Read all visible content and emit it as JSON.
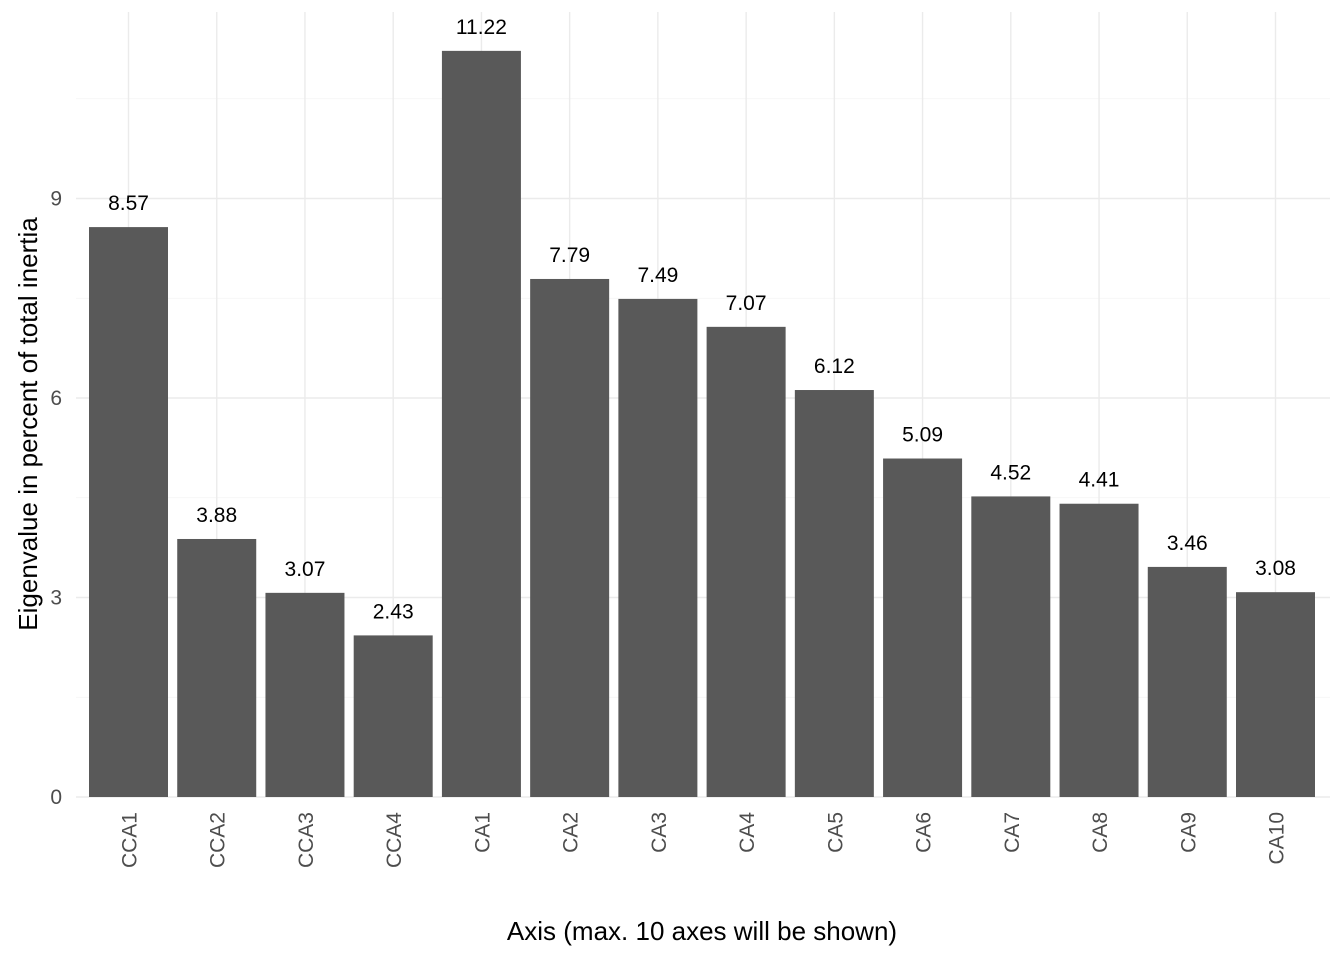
{
  "chart_data": {
    "type": "bar",
    "title": "",
    "xlabel": "Axis (max. 10 axes will be shown)",
    "ylabel": "Eigenvalue in percent of total inertia",
    "categories": [
      "CCA1",
      "CCA2",
      "CCA3",
      "CCA4",
      "CA1",
      "CA2",
      "CA3",
      "CA4",
      "CA5",
      "CA6",
      "CA7",
      "CA8",
      "CA9",
      "CA10"
    ],
    "values": [
      8.57,
      3.88,
      3.07,
      2.43,
      11.22,
      7.79,
      7.49,
      7.07,
      6.12,
      5.09,
      4.52,
      4.41,
      3.46,
      3.08
    ],
    "data_labels": [
      "8.57",
      "3.88",
      "3.07",
      "2.43",
      "11.22",
      "7.79",
      "7.49",
      "7.07",
      "6.12",
      "5.09",
      "4.52",
      "4.41",
      "3.46",
      "3.08"
    ],
    "y_ticks": [
      0,
      3,
      6,
      9
    ],
    "y_tick_labels": [
      "0",
      "3",
      "6",
      "9"
    ],
    "ylim": [
      0,
      11.8
    ],
    "grid": true,
    "legend": "none",
    "colors": {
      "bar": "#595959",
      "grid": "#ebebeb",
      "background": "#ffffff"
    }
  }
}
